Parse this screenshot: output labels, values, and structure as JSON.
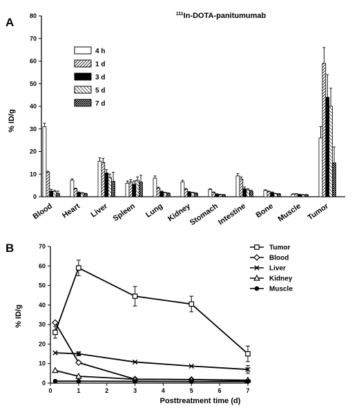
{
  "chart_data": [
    {
      "type": "bar",
      "panel": "A",
      "title_sup": "111",
      "title_main": "In-DOTA-panitumumab",
      "ylabel": "% ID/g",
      "xlabel": "",
      "ylim": [
        0,
        80
      ],
      "yticks": [
        0,
        10,
        20,
        30,
        40,
        50,
        60,
        70,
        80
      ],
      "grid": false,
      "legend_position": "top-left",
      "categories": [
        "Blood",
        "Heart",
        "Liver",
        "Spleen",
        "Lung",
        "Kidney",
        "Stomach",
        "Intestine",
        "Bone",
        "Muscle",
        "Tumor"
      ],
      "series": [
        {
          "name": "4 h",
          "pattern": "open",
          "values": [
            31,
            7.3,
            15.7,
            6,
            8.2,
            6.5,
            3.2,
            9.2,
            2.8,
            1.1,
            26
          ],
          "errors": [
            1.5,
            0.6,
            1.5,
            1,
            1,
            0.8,
            0.3,
            1,
            0.3,
            0.2,
            5
          ]
        },
        {
          "name": "1 d",
          "pattern": "hatch-dense",
          "values": [
            10.8,
            3.5,
            15.2,
            6.5,
            3.8,
            3.3,
            1.9,
            7.8,
            2.2,
            1.2,
            59
          ],
          "errors": [
            0.5,
            0.3,
            1.8,
            1,
            0.4,
            0.3,
            0.2,
            1,
            0.3,
            0.2,
            7
          ]
        },
        {
          "name": "3 d",
          "pattern": "solid",
          "values": [
            2.5,
            1.8,
            10.5,
            5.5,
            2.2,
            2,
            1.1,
            3.5,
            1.8,
            0.9,
            44
          ],
          "errors": [
            0.8,
            0.3,
            1.5,
            1.5,
            0.3,
            0.3,
            0.2,
            0.8,
            0.3,
            0.2,
            10
          ]
        },
        {
          "name": "5 d",
          "pattern": "hatch-sparse",
          "values": [
            2.3,
            1.6,
            8.5,
            7.3,
            1.8,
            1.8,
            0.9,
            3,
            1.3,
            0.8,
            40
          ],
          "errors": [
            0.5,
            0.2,
            1.5,
            1.5,
            0.2,
            0.2,
            0.2,
            0.5,
            0.2,
            0.2,
            8
          ]
        },
        {
          "name": "7 d",
          "pattern": "crosshatch",
          "values": [
            1.5,
            1.3,
            6.8,
            6.5,
            1.5,
            1.5,
            0.8,
            2.4,
            1.2,
            0.8,
            15
          ],
          "errors": [
            1,
            0.2,
            4,
            3,
            0.2,
            0.2,
            0.2,
            0.5,
            0.2,
            0.2,
            7
          ]
        }
      ]
    },
    {
      "type": "line",
      "panel": "B",
      "xlabel": "Posttreatment time (d)",
      "ylabel": "% ID/g",
      "xlim": [
        0,
        7
      ],
      "ylim": [
        0,
        70
      ],
      "xticks": [
        0,
        1,
        2,
        3,
        4,
        5,
        6,
        7
      ],
      "yticks": [
        0,
        10,
        20,
        30,
        40,
        50,
        60,
        70
      ],
      "grid": false,
      "legend_position": "top-right",
      "series": [
        {
          "name": "Tumor",
          "marker": "square",
          "x": [
            0.17,
            1,
            3,
            5,
            7
          ],
          "y": [
            26,
            59,
            44.5,
            40.5,
            15
          ],
          "errors": [
            3,
            4,
            5,
            4,
            4
          ]
        },
        {
          "name": "Blood",
          "marker": "diamond",
          "x": [
            0.17,
            1,
            3,
            5,
            7
          ],
          "y": [
            31,
            10.5,
            2,
            1.8,
            1.2
          ],
          "errors": [
            0,
            0,
            0,
            0,
            0
          ]
        },
        {
          "name": "Liver",
          "marker": "x",
          "x": [
            0.17,
            1,
            3,
            5,
            7
          ],
          "y": [
            15.5,
            15,
            10.8,
            8.7,
            7
          ],
          "errors": [
            0,
            1,
            0,
            0,
            2
          ]
        },
        {
          "name": "Kidney",
          "marker": "triangle",
          "x": [
            0.17,
            1,
            3,
            5,
            7
          ],
          "y": [
            6.5,
            3.5,
            2,
            1.8,
            1.5
          ],
          "errors": [
            0,
            0,
            0,
            0,
            0
          ]
        },
        {
          "name": "Muscle",
          "marker": "circle",
          "x": [
            0.17,
            1,
            3,
            5,
            7
          ],
          "y": [
            1,
            1,
            0.9,
            0.8,
            0.8
          ],
          "errors": [
            0,
            0,
            0,
            0,
            0
          ]
        }
      ]
    }
  ]
}
